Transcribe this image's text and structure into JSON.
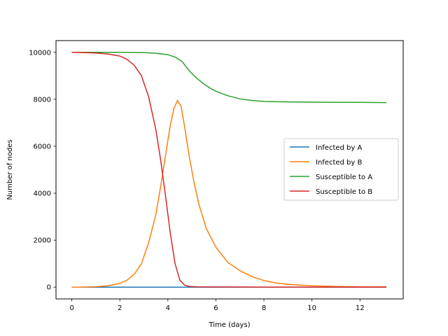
{
  "chart_data": {
    "type": "line",
    "title": "",
    "xlabel": "Time (days)",
    "ylabel": "Number of nodes",
    "xlim": [
      -0.66,
      13.8
    ],
    "ylim": [
      -500,
      10500
    ],
    "xticks": [
      0,
      2,
      4,
      6,
      8,
      10,
      12
    ],
    "yticks": [
      0,
      2000,
      4000,
      6000,
      8000,
      10000
    ],
    "grid": false,
    "legend_position": "center-right",
    "series": [
      {
        "name": "Infected by A",
        "color": "#1f77b4",
        "x": [
          0,
          1,
          2,
          3,
          4,
          5,
          6,
          7,
          8,
          9,
          10,
          11,
          12,
          13.1
        ],
        "y": [
          0,
          0,
          0,
          0,
          0,
          0,
          0,
          0,
          0,
          0,
          0,
          0,
          0,
          0
        ]
      },
      {
        "name": "Infected by B",
        "color": "#ff7f0e",
        "x": [
          0,
          0.5,
          1.0,
          1.5,
          2.0,
          2.3,
          2.6,
          2.9,
          3.2,
          3.5,
          3.7,
          3.9,
          4.1,
          4.25,
          4.4,
          4.55,
          4.7,
          4.9,
          5.1,
          5.3,
          5.6,
          6.0,
          6.5,
          7.0,
          7.5,
          8.0,
          8.5,
          9.0,
          10.0,
          11.0,
          12.0,
          13.1
        ],
        "y": [
          0,
          5,
          20,
          60,
          160,
          300,
          550,
          1000,
          1900,
          3100,
          4300,
          5600,
          6900,
          7600,
          7950,
          7700,
          6800,
          5500,
          4400,
          3500,
          2500,
          1700,
          1050,
          700,
          450,
          280,
          180,
          120,
          60,
          30,
          15,
          10
        ]
      },
      {
        "name": "Susceptible to A",
        "color": "#2ca02c",
        "x": [
          0,
          1,
          2,
          3,
          3.5,
          4.0,
          4.3,
          4.6,
          4.9,
          5.2,
          5.5,
          5.8,
          6.1,
          6.5,
          7.0,
          7.5,
          8.0,
          9.0,
          10.0,
          11.0,
          12.0,
          13.1
        ],
        "y": [
          10000,
          10000,
          10000,
          9990,
          9960,
          9900,
          9800,
          9600,
          9200,
          8900,
          8650,
          8450,
          8300,
          8150,
          8020,
          7950,
          7910,
          7890,
          7880,
          7870,
          7870,
          7860
        ]
      },
      {
        "name": "Susceptible to B",
        "color": "#d62728",
        "x": [
          0,
          0.5,
          1.0,
          1.5,
          2.0,
          2.3,
          2.6,
          2.9,
          3.2,
          3.5,
          3.7,
          3.9,
          4.1,
          4.3,
          4.5,
          4.7,
          4.9,
          5.2,
          6.0,
          8.0,
          10.0,
          13.1
        ],
        "y": [
          10000,
          9990,
          9970,
          9930,
          9840,
          9700,
          9450,
          9000,
          8100,
          6700,
          5400,
          3900,
          2300,
          1000,
          300,
          80,
          30,
          15,
          10,
          5,
          5,
          5
        ]
      }
    ]
  }
}
